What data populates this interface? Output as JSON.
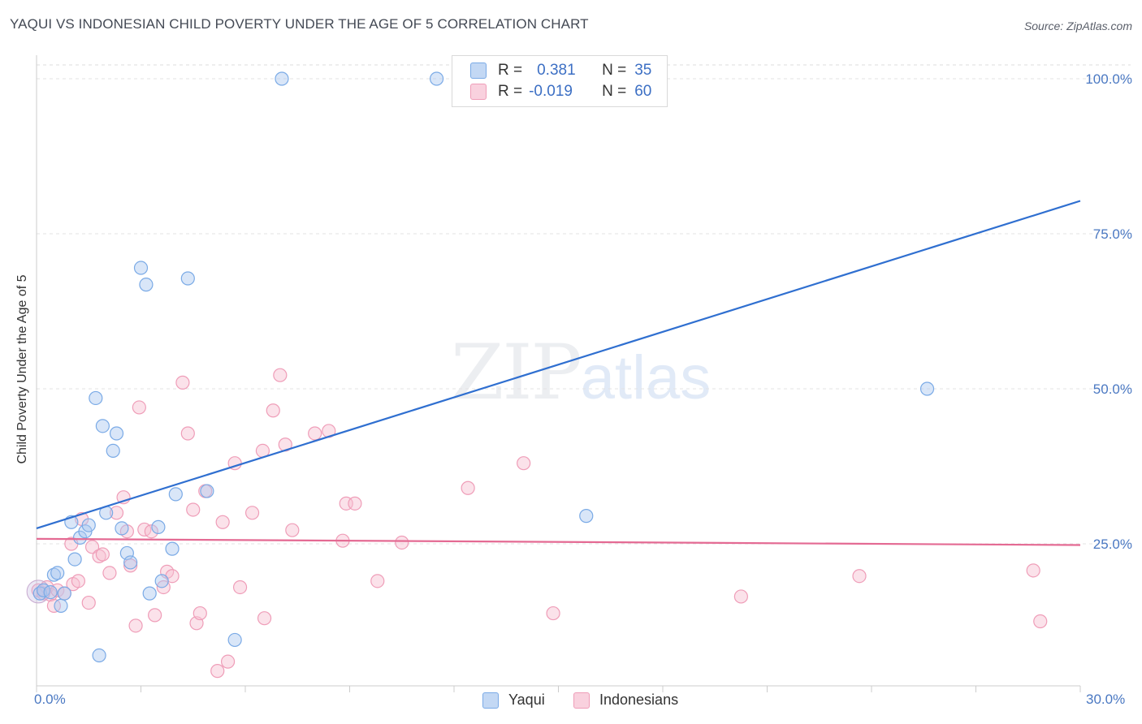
{
  "chart_data": {
    "type": "scatter",
    "title": "YAQUI VS INDONESIAN CHILD POVERTY UNDER THE AGE OF 5 CORRELATION CHART",
    "source": "Source: ZipAtlas.com",
    "xlabel": "",
    "ylabel": "Child Poverty Under the Age of 5",
    "xlim": [
      0,
      30
    ],
    "ylim": [
      0,
      100
    ],
    "x_tick_labels": [
      "0.0%",
      "30.0%"
    ],
    "y_ticks": [
      25,
      50,
      75,
      100
    ],
    "y_tick_labels": [
      "25.0%",
      "50.0%",
      "75.0%",
      "100.0%"
    ],
    "watermark": {
      "zip": "ZIP",
      "atlas": "atlas"
    },
    "legend": [
      {
        "r_label": "R =",
        "r_value": "0.381",
        "n_label": "N =",
        "n_value": "35"
      },
      {
        "r_label": "R =",
        "r_value": "-0.019",
        "n_label": "N =",
        "n_value": "60"
      }
    ],
    "series": [
      {
        "name": "Yaqui",
        "color": "#7aaae6",
        "fill": "rgba(170,200,240,0.45)",
        "trend": {
          "x0": 0,
          "y0": 27.5,
          "x1": 30,
          "y1": 80.3,
          "color": "#2f6fd0"
        },
        "points": [
          [
            0.1,
            17.0
          ],
          [
            0.2,
            17.5
          ],
          [
            0.4,
            17.2
          ],
          [
            0.5,
            20.0
          ],
          [
            0.6,
            20.3
          ],
          [
            0.7,
            15.0
          ],
          [
            0.8,
            17.0
          ],
          [
            1.0,
            28.5
          ],
          [
            1.1,
            22.5
          ],
          [
            1.25,
            26.0
          ],
          [
            1.4,
            27.0
          ],
          [
            1.5,
            28.0
          ],
          [
            1.7,
            48.5
          ],
          [
            1.9,
            44.0
          ],
          [
            2.0,
            30.0
          ],
          [
            2.2,
            40.0
          ],
          [
            2.3,
            42.8
          ],
          [
            2.45,
            27.5
          ],
          [
            2.6,
            23.5
          ],
          [
            2.7,
            22.0
          ],
          [
            3.0,
            69.5
          ],
          [
            3.15,
            66.8
          ],
          [
            3.25,
            17.0
          ],
          [
            3.5,
            27.7
          ],
          [
            3.6,
            19.0
          ],
          [
            3.9,
            24.2
          ],
          [
            4.0,
            33.0
          ],
          [
            4.35,
            67.8
          ],
          [
            4.9,
            33.5
          ],
          [
            5.7,
            9.5
          ],
          [
            7.05,
            100.0
          ],
          [
            11.5,
            100.0
          ],
          [
            15.8,
            29.5
          ],
          [
            25.6,
            50.0
          ],
          [
            1.8,
            7.0
          ]
        ]
      },
      {
        "name": "Indonesians",
        "color": "#ef9db8",
        "fill": "rgba(246,190,208,0.45)",
        "trend": {
          "x0": 0,
          "y0": 25.8,
          "x1": 30,
          "y1": 24.8,
          "color": "#e46a93"
        },
        "points": [
          [
            0.05,
            17.5
          ],
          [
            0.2,
            17.0
          ],
          [
            0.3,
            18.0
          ],
          [
            0.4,
            16.8
          ],
          [
            0.5,
            15.0
          ],
          [
            0.6,
            17.5
          ],
          [
            0.8,
            17.0
          ],
          [
            1.0,
            25.0
          ],
          [
            1.05,
            18.5
          ],
          [
            1.2,
            19.0
          ],
          [
            1.3,
            29.0
          ],
          [
            1.5,
            15.5
          ],
          [
            1.6,
            24.5
          ],
          [
            1.8,
            23.0
          ],
          [
            1.9,
            23.3
          ],
          [
            2.1,
            20.3
          ],
          [
            2.3,
            30.0
          ],
          [
            2.5,
            32.5
          ],
          [
            2.6,
            27.0
          ],
          [
            2.7,
            21.5
          ],
          [
            2.85,
            11.8
          ],
          [
            2.95,
            47.0
          ],
          [
            3.1,
            27.3
          ],
          [
            3.3,
            27.0
          ],
          [
            3.4,
            13.5
          ],
          [
            3.65,
            18.0
          ],
          [
            3.75,
            20.5
          ],
          [
            3.9,
            19.8
          ],
          [
            4.2,
            51.0
          ],
          [
            4.35,
            42.8
          ],
          [
            4.5,
            30.5
          ],
          [
            4.6,
            12.2
          ],
          [
            4.7,
            13.8
          ],
          [
            4.85,
            33.5
          ],
          [
            5.2,
            4.5
          ],
          [
            5.35,
            28.5
          ],
          [
            5.5,
            6.0
          ],
          [
            5.7,
            38.0
          ],
          [
            5.85,
            18.0
          ],
          [
            6.2,
            30.0
          ],
          [
            6.5,
            40.0
          ],
          [
            6.55,
            13.0
          ],
          [
            6.8,
            46.5
          ],
          [
            7.0,
            52.2
          ],
          [
            7.15,
            41.0
          ],
          [
            7.35,
            27.2
          ],
          [
            8.0,
            42.8
          ],
          [
            8.4,
            43.2
          ],
          [
            8.8,
            25.5
          ],
          [
            8.9,
            31.5
          ],
          [
            9.15,
            31.5
          ],
          [
            9.8,
            19.0
          ],
          [
            10.5,
            25.2
          ],
          [
            12.4,
            34.0
          ],
          [
            14.0,
            38.0
          ],
          [
            14.85,
            13.8
          ],
          [
            20.25,
            16.5
          ],
          [
            23.65,
            19.8
          ],
          [
            28.65,
            20.7
          ],
          [
            28.85,
            12.5
          ]
        ]
      }
    ]
  },
  "bottom_legend": [
    {
      "label": "Yaqui"
    },
    {
      "label": "Indonesians"
    }
  ]
}
